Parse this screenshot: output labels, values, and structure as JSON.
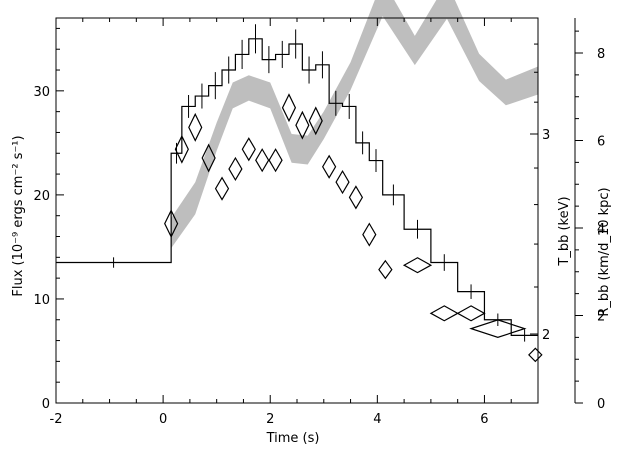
{
  "chart_data": {
    "type": "line",
    "xlabel": "Time (s)",
    "ylabel_left": "Flux (10⁻⁹ ergs cm⁻² s⁻¹)",
    "ylabel_right_1": "T_bb (keV)",
    "ylabel_right_2": "R_bb (km/d_10 kpc)",
    "x_ticks": [
      "-2",
      "0",
      "2",
      "4",
      "6"
    ],
    "x_tick_values": [
      -2,
      0,
      2,
      4,
      6
    ],
    "xlim": [
      -2,
      7
    ],
    "left_axis": {
      "ylim": [
        0,
        37
      ],
      "ticks": [
        "0",
        "10",
        "20",
        "30"
      ],
      "tick_values": [
        0,
        10,
        20,
        30
      ]
    },
    "temperature_axis": {
      "scale": "log",
      "ticks": [
        "2",
        "3"
      ],
      "tick_values": [
        2,
        3
      ]
    },
    "radius_axis": {
      "ylim": [
        0,
        8.8
      ],
      "ticks": [
        "0",
        "2",
        "4",
        "6",
        "8"
      ],
      "tick_values": [
        0,
        2,
        4,
        6,
        8
      ]
    },
    "series": [
      {
        "name": "Flux",
        "style": "step",
        "color": "#000000",
        "points": [
          {
            "x0": -2,
            "x1": 0.15,
            "y": 13.5,
            "err": 0.5
          },
          {
            "x0": 0.15,
            "x1": 0.35,
            "y": 24.0,
            "err": 1.0
          },
          {
            "x0": 0.35,
            "x1": 0.6,
            "y": 28.5,
            "err": 1.1
          },
          {
            "x0": 0.6,
            "x1": 0.85,
            "y": 29.5,
            "err": 1.2
          },
          {
            "x0": 0.85,
            "x1": 1.1,
            "y": 30.5,
            "err": 1.3
          },
          {
            "x0": 1.1,
            "x1": 1.35,
            "y": 32.0,
            "err": 1.3
          },
          {
            "x0": 1.35,
            "x1": 1.6,
            "y": 33.5,
            "err": 1.4
          },
          {
            "x0": 1.6,
            "x1": 1.85,
            "y": 35.0,
            "err": 1.4
          },
          {
            "x0": 1.85,
            "x1": 2.1,
            "y": 33.0,
            "err": 1.3
          },
          {
            "x0": 2.1,
            "x1": 2.35,
            "y": 33.5,
            "err": 1.3
          },
          {
            "x0": 2.35,
            "x1": 2.6,
            "y": 34.5,
            "err": 1.4
          },
          {
            "x0": 2.6,
            "x1": 2.85,
            "y": 32.0,
            "err": 1.3
          },
          {
            "x0": 2.85,
            "x1": 3.1,
            "y": 32.5,
            "err": 1.3
          },
          {
            "x0": 3.1,
            "x1": 3.35,
            "y": 28.8,
            "err": 1.2
          },
          {
            "x0": 3.35,
            "x1": 3.6,
            "y": 28.5,
            "err": 1.2
          },
          {
            "x0": 3.6,
            "x1": 3.85,
            "y": 25.0,
            "err": 1.1
          },
          {
            "x0": 3.85,
            "x1": 4.1,
            "y": 23.3,
            "err": 1.1
          },
          {
            "x0": 4.1,
            "x1": 4.5,
            "y": 20.0,
            "err": 1.0
          },
          {
            "x0": 4.5,
            "x1": 5.0,
            "y": 16.7,
            "err": 0.9
          },
          {
            "x0": 5.0,
            "x1": 5.5,
            "y": 13.5,
            "err": 0.8
          },
          {
            "x0": 5.5,
            "x1": 6.0,
            "y": 10.7,
            "err": 0.7
          },
          {
            "x0": 6.0,
            "x1": 6.5,
            "y": 8.0,
            "err": 0.6
          },
          {
            "x0": 6.5,
            "x1": 7.0,
            "y": 6.5,
            "err": 0.6
          }
        ]
      },
      {
        "name": "T_bb",
        "style": "band",
        "axis": "temperature",
        "color": "#bebebe",
        "points": [
          {
            "x": 0.15,
            "y": 2.45,
            "lo": 2.38,
            "hi": 2.53
          },
          {
            "x": 0.6,
            "y": 2.63,
            "lo": 2.55,
            "hi": 2.72
          },
          {
            "x": 1.0,
            "y": 2.98,
            "lo": 2.9,
            "hi": 3.07
          },
          {
            "x": 1.3,
            "y": 3.24,
            "lo": 3.16,
            "hi": 3.33
          },
          {
            "x": 1.6,
            "y": 3.29,
            "lo": 3.21,
            "hi": 3.38
          },
          {
            "x": 2.0,
            "y": 3.24,
            "lo": 3.16,
            "hi": 3.33
          },
          {
            "x": 2.4,
            "y": 2.91,
            "lo": 2.83,
            "hi": 3.0
          },
          {
            "x": 2.7,
            "y": 2.9,
            "lo": 2.82,
            "hi": 2.99
          },
          {
            "x": 3.0,
            "y": 3.05,
            "lo": 2.97,
            "hi": 3.14
          },
          {
            "x": 3.5,
            "y": 3.37,
            "lo": 3.28,
            "hi": 3.47
          },
          {
            "x": 4.1,
            "y": 3.95,
            "lo": 3.81,
            "hi": 4.1
          },
          {
            "x": 4.7,
            "y": 3.55,
            "lo": 3.45,
            "hi": 3.66
          },
          {
            "x": 5.3,
            "y": 3.93,
            "lo": 3.79,
            "hi": 4.08
          },
          {
            "x": 5.9,
            "y": 3.43,
            "lo": 3.34,
            "hi": 3.53
          },
          {
            "x": 6.4,
            "y": 3.26,
            "lo": 3.18,
            "hi": 3.35
          },
          {
            "x": 7.0,
            "y": 3.34,
            "lo": 3.25,
            "hi": 3.44
          }
        ]
      },
      {
        "name": "R_bb",
        "style": "diamonds",
        "axis": "radius",
        "color": "#000000",
        "points": [
          {
            "x": 0.15,
            "y": 4.1,
            "dx": 0.12,
            "dy": 0.3
          },
          {
            "x": 0.35,
            "y": 5.8,
            "dx": 0.12,
            "dy": 0.3
          },
          {
            "x": 0.6,
            "y": 6.3,
            "dx": 0.12,
            "dy": 0.3
          },
          {
            "x": 0.85,
            "y": 5.6,
            "dx": 0.12,
            "dy": 0.3
          },
          {
            "x": 1.1,
            "y": 4.9,
            "dx": 0.12,
            "dy": 0.25
          },
          {
            "x": 1.35,
            "y": 5.35,
            "dx": 0.12,
            "dy": 0.25
          },
          {
            "x": 1.6,
            "y": 5.8,
            "dx": 0.12,
            "dy": 0.25
          },
          {
            "x": 1.85,
            "y": 5.55,
            "dx": 0.12,
            "dy": 0.25
          },
          {
            "x": 2.1,
            "y": 5.55,
            "dx": 0.12,
            "dy": 0.25
          },
          {
            "x": 2.35,
            "y": 6.75,
            "dx": 0.12,
            "dy": 0.3
          },
          {
            "x": 2.6,
            "y": 6.35,
            "dx": 0.12,
            "dy": 0.3
          },
          {
            "x": 2.85,
            "y": 6.45,
            "dx": 0.12,
            "dy": 0.3
          },
          {
            "x": 3.1,
            "y": 5.4,
            "dx": 0.12,
            "dy": 0.25
          },
          {
            "x": 3.35,
            "y": 5.05,
            "dx": 0.12,
            "dy": 0.25
          },
          {
            "x": 3.6,
            "y": 4.7,
            "dx": 0.12,
            "dy": 0.25
          },
          {
            "x": 3.85,
            "y": 3.85,
            "dx": 0.12,
            "dy": 0.25
          },
          {
            "x": 4.15,
            "y": 3.05,
            "dx": 0.12,
            "dy": 0.2
          },
          {
            "x": 4.75,
            "y": 3.15,
            "dx": 0.25,
            "dy": 0.17
          },
          {
            "x": 5.25,
            "y": 2.05,
            "dx": 0.25,
            "dy": 0.17
          },
          {
            "x": 5.75,
            "y": 2.05,
            "dx": 0.25,
            "dy": 0.17
          },
          {
            "x": 6.25,
            "y": 1.7,
            "dx": 0.5,
            "dy": 0.2
          },
          {
            "x": 6.95,
            "y": 1.1,
            "dx": 0.12,
            "dy": 0.15
          }
        ]
      }
    ]
  }
}
